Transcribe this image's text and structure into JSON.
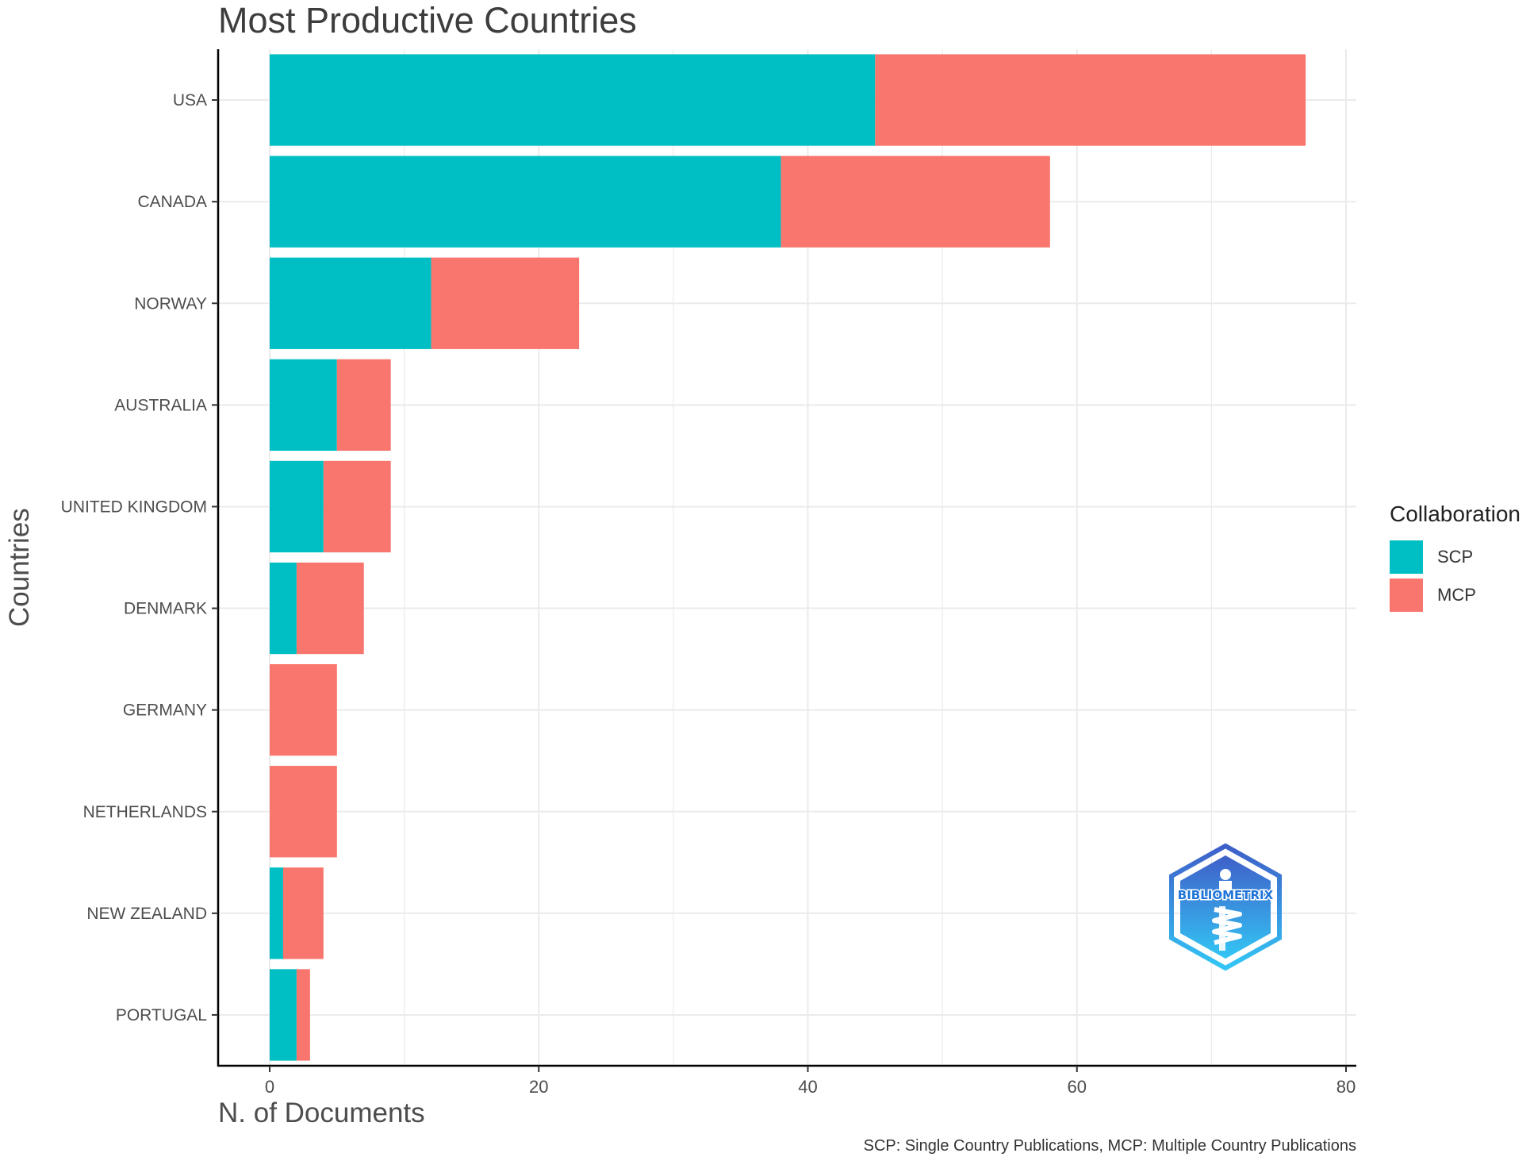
{
  "chart_data": {
    "type": "bar",
    "orientation": "horizontal",
    "stacked": true,
    "title": "Most Productive Countries",
    "xlabel": "N. of Documents",
    "ylabel": "Countries",
    "caption": "SCP: Single Country Publications, MCP: Multiple Country Publications",
    "categories": [
      "USA",
      "CANADA",
      "NORWAY",
      "AUSTRALIA",
      "UNITED KINGDOM",
      "DENMARK",
      "GERMANY",
      "NETHERLANDS",
      "NEW ZEALAND",
      "PORTUGAL"
    ],
    "series": [
      {
        "name": "SCP",
        "color": "#00BFC4",
        "values": [
          45,
          38,
          12,
          5,
          4,
          2,
          0,
          0,
          1,
          2
        ]
      },
      {
        "name": "MCP",
        "color": "#F8766D",
        "values": [
          32,
          20,
          11,
          4,
          5,
          5,
          5,
          5,
          3,
          1
        ]
      }
    ],
    "xlim": [
      0,
      80
    ],
    "xticks": [
      0,
      20,
      40,
      60,
      80
    ],
    "grid": true,
    "legend": {
      "title": "Collaboration",
      "position": "right"
    }
  },
  "logo": {
    "text": "BIBLIOMETRIX"
  }
}
